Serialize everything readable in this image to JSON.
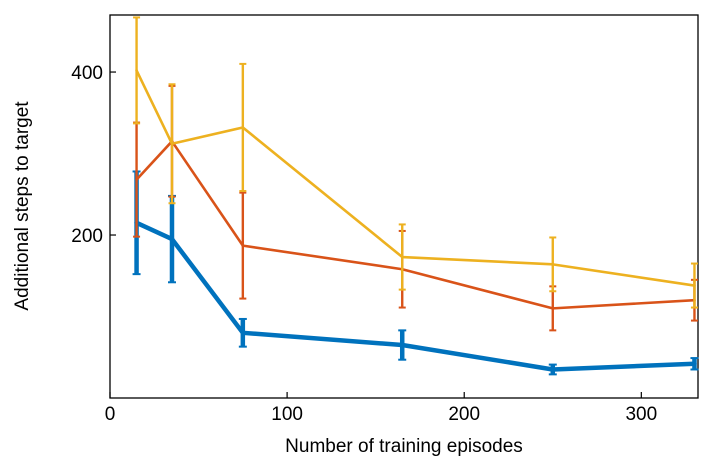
{
  "chart_data": {
    "type": "line",
    "title": "",
    "xlabel": "Number of training episodes",
    "ylabel": "Additional steps to target",
    "xlim": [
      0,
      332
    ],
    "ylim": [
      0,
      470
    ],
    "xticks": [
      0,
      100,
      200,
      300
    ],
    "yticks": [
      200,
      400
    ],
    "grid": false,
    "legend": "none",
    "series": [
      {
        "color": "#0072BD",
        "x": [
          15,
          35,
          75,
          165,
          250,
          330
        ],
        "y": [
          215,
          195,
          80,
          65,
          35,
          42
        ],
        "err": [
          63,
          53,
          17,
          18,
          6,
          7
        ]
      },
      {
        "color": "#D95319",
        "x": [
          15,
          35,
          75,
          165,
          250,
          330
        ],
        "y": [
          268,
          315,
          187,
          158,
          110,
          120
        ],
        "err": [
          70,
          68,
          65,
          47,
          27,
          25
        ]
      },
      {
        "color": "#EDB120",
        "x": [
          15,
          35,
          75,
          165,
          250,
          330
        ],
        "y": [
          402,
          312,
          332,
          173,
          164,
          138
        ],
        "err": [
          65,
          73,
          78,
          40,
          33,
          27
        ]
      }
    ]
  }
}
